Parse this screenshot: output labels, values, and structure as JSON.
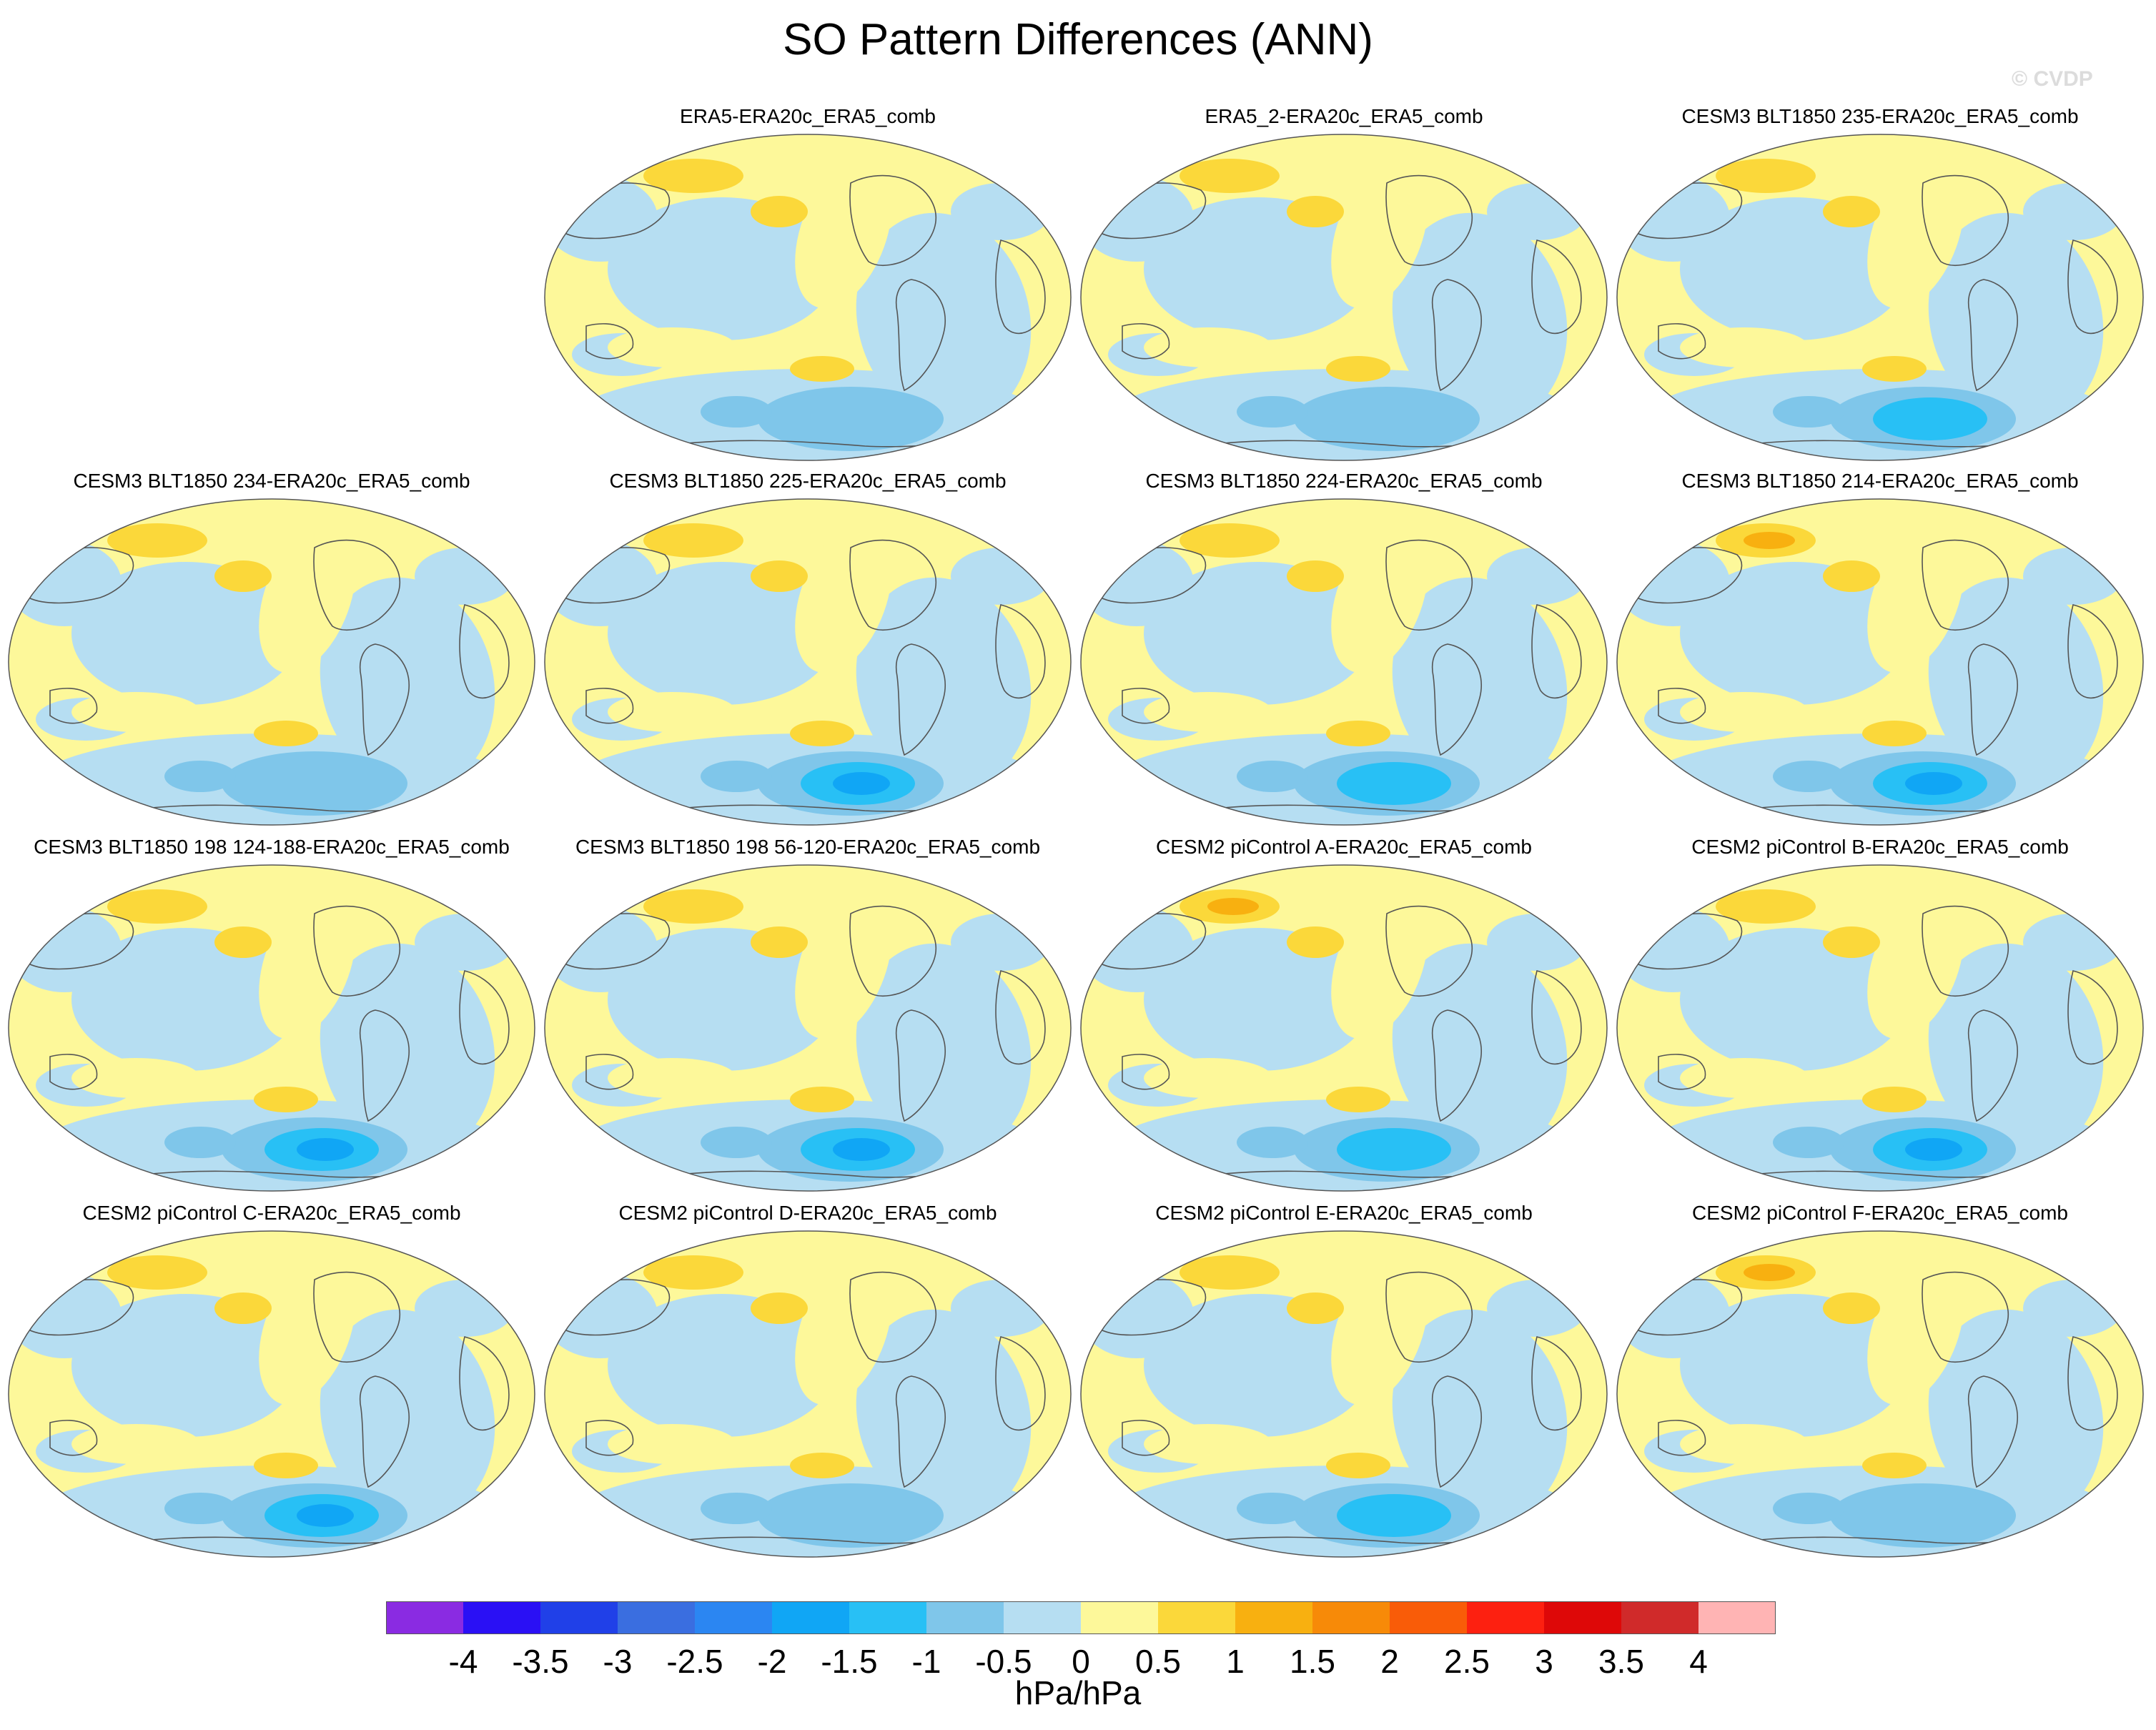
{
  "title": "SO Pattern Differences (ANN)",
  "watermark": "© CVDP",
  "units": "hPa/hPa",
  "colorbar": {
    "labels": [
      "-4",
      "-3.5",
      "-3",
      "-2.5",
      "-2",
      "-1.5",
      "-1",
      "-0.5",
      "0",
      "0.5",
      "1",
      "1.5",
      "2",
      "2.5",
      "3",
      "3.5",
      "4"
    ],
    "colors": [
      "#8a2be2",
      "#2a10f5",
      "#2040e8",
      "#3a6ee0",
      "#2b86f2",
      "#10a6f5",
      "#28c0f5",
      "#7fc6ea",
      "#b6def2",
      "#fdf89a",
      "#fbd83a",
      "#f8b010",
      "#f78a08",
      "#f95c08",
      "#fd2010",
      "#de0808",
      "#d02a2a",
      "#ffb4b4"
    ]
  },
  "map_colors": {
    "ocean_neg1": "#b6def2",
    "neg2": "#7fc6ea",
    "neg3": "#28c0f5",
    "neg4": "#10a6f5",
    "pos1": "#fdf89a",
    "pos2": "#fbd83a",
    "pos3": "#f8b010",
    "pos4": "#f78a08",
    "coast": "#555555"
  },
  "panels": [
    {
      "title": "ERA5-ERA20c_ERA5_comb",
      "sh_neg_strength": 2,
      "nh_pos_strength": 2
    },
    {
      "title": "ERA5_2-ERA20c_ERA5_comb",
      "sh_neg_strength": 2,
      "nh_pos_strength": 2
    },
    {
      "title": "CESM3 BLT1850 235-ERA20c_ERA5_comb",
      "sh_neg_strength": 3,
      "nh_pos_strength": 2
    },
    {
      "title": "CESM3 BLT1850 234-ERA20c_ERA5_comb",
      "sh_neg_strength": 2,
      "nh_pos_strength": 2
    },
    {
      "title": "CESM3 BLT1850 225-ERA20c_ERA5_comb",
      "sh_neg_strength": 4,
      "nh_pos_strength": 2
    },
    {
      "title": "CESM3 BLT1850 224-ERA20c_ERA5_comb",
      "sh_neg_strength": 3,
      "nh_pos_strength": 2
    },
    {
      "title": "CESM3 BLT1850 214-ERA20c_ERA5_comb",
      "sh_neg_strength": 4,
      "nh_pos_strength": 3
    },
    {
      "title": "CESM3 BLT1850 198 124-188-ERA20c_ERA5_comb",
      "sh_neg_strength": 4,
      "nh_pos_strength": 2
    },
    {
      "title": "CESM3 BLT1850 198 56-120-ERA20c_ERA5_comb",
      "sh_neg_strength": 4,
      "nh_pos_strength": 2
    },
    {
      "title": "CESM2 piControl A-ERA20c_ERA5_comb",
      "sh_neg_strength": 3,
      "nh_pos_strength": 3
    },
    {
      "title": "CESM2 piControl B-ERA20c_ERA5_comb",
      "sh_neg_strength": 4,
      "nh_pos_strength": 2
    },
    {
      "title": "CESM2 piControl C-ERA20c_ERA5_comb",
      "sh_neg_strength": 4,
      "nh_pos_strength": 2
    },
    {
      "title": "CESM2 piControl D-ERA20c_ERA5_comb",
      "sh_neg_strength": 2,
      "nh_pos_strength": 2
    },
    {
      "title": "CESM2 piControl E-ERA20c_ERA5_comb",
      "sh_neg_strength": 3,
      "nh_pos_strength": 2
    },
    {
      "title": "CESM2 piControl F-ERA20c_ERA5_comb",
      "sh_neg_strength": 2,
      "nh_pos_strength": 3
    }
  ]
}
